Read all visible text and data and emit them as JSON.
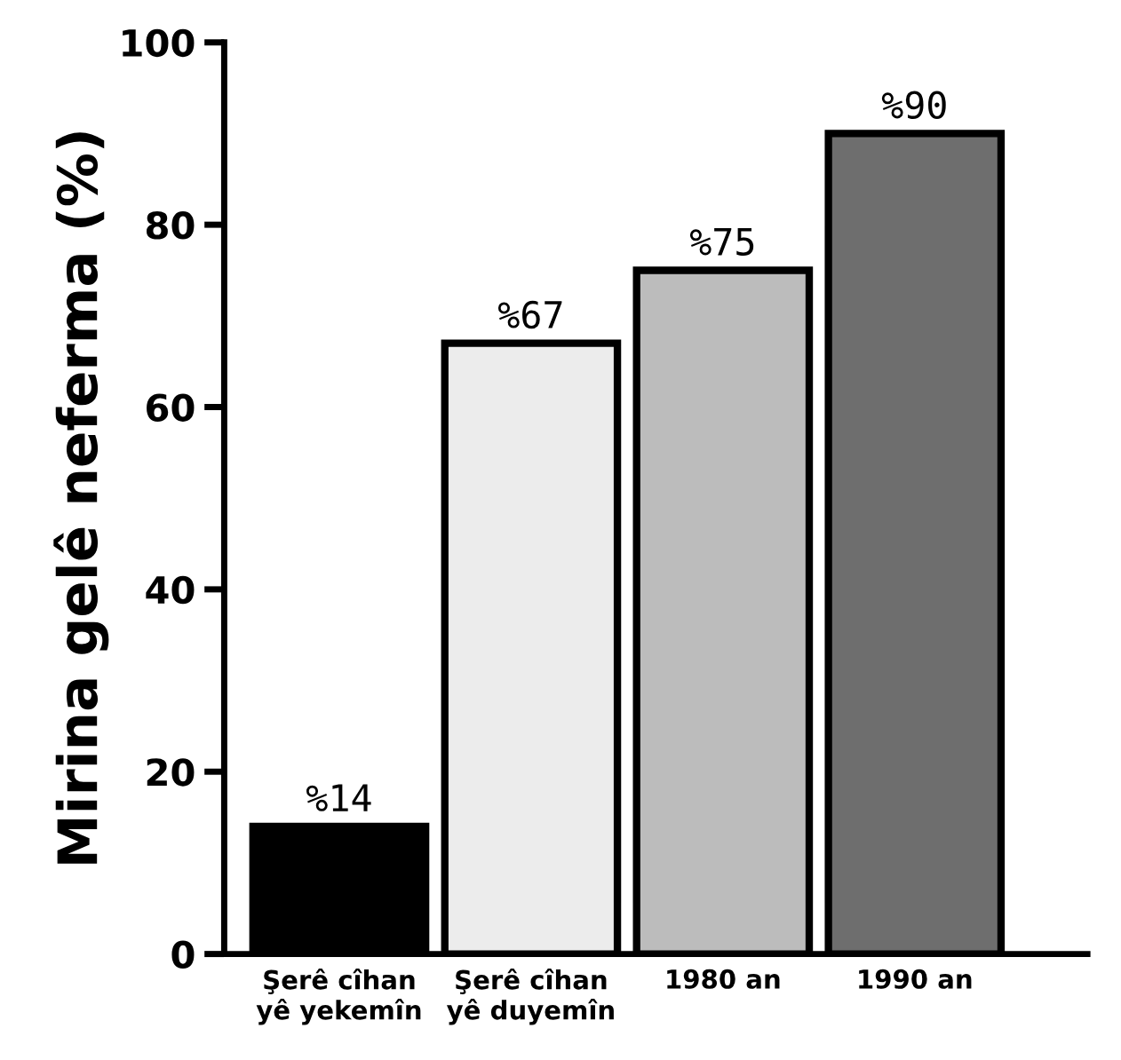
{
  "chart_data": {
    "type": "bar",
    "ylabel": "Mirina gelê neferma (%)",
    "categories": [
      "Şerê cîhan\nyê yekemîn",
      "Şerê cîhan\nyê duyemîn",
      "1980 an",
      "1990 an"
    ],
    "values": [
      14,
      67,
      75,
      90
    ],
    "colors": [
      "#000000",
      "#ececec",
      "#bcbcbc",
      "#6e6e6e"
    ],
    "value_labels": [
      "%14",
      "%67",
      "%75",
      "%90"
    ],
    "ylim": [
      0,
      100
    ],
    "yticks": [
      0,
      20,
      40,
      60,
      80,
      100
    ],
    "grid": false,
    "legend": false
  }
}
